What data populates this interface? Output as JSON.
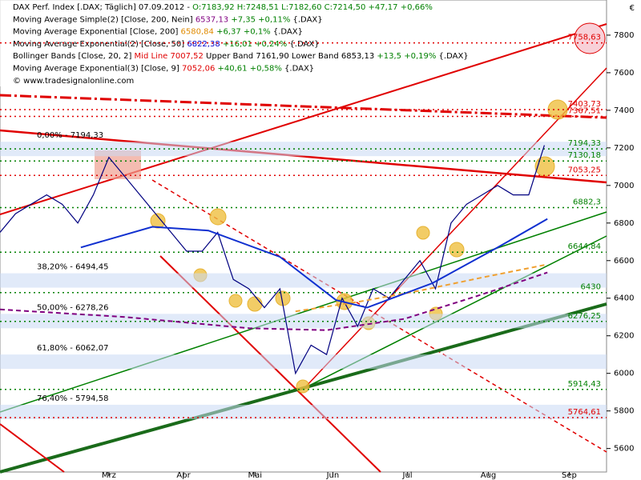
{
  "chart_data": {
    "type": "line",
    "header": [
      {
        "parts": [
          "DAX Perf. Index [.DAX; Täglich] 07.09.2012 - ",
          "O:7183,92 H:7248,51 L:7182,60 C:7214,50 +47,17 +0,66%"
        ],
        "colors": [
          "#000000",
          "#008000"
        ]
      },
      {
        "parts": [
          "Moving Average Simple(2) [Close, 200, Nein] ",
          "6537,13",
          " +7,35 +0,11%",
          " {.DAX}"
        ],
        "colors": [
          "#000000",
          "#800080",
          "#008000",
          "#000000"
        ]
      },
      {
        "parts": [
          "Moving Average Exponential [Close, 200] ",
          "6580,84",
          " +6,37 +0,1%",
          " {.DAX}"
        ],
        "colors": [
          "#000000",
          "#e08a00",
          "#008000",
          "#000000"
        ]
      },
      {
        "parts": [
          "Moving Average Exponential(2) [Close, 50] ",
          "6822,38",
          " +16,01 +0,24%",
          " {.DAX}"
        ],
        "colors": [
          "#000000",
          "#0000cc",
          "#008000",
          "#000000"
        ]
      },
      {
        "parts": [
          "Bollinger Bands [Close, 20, 2] ",
          "Mid Line 7007,52",
          " Upper Band 7161,90 Lower Band 6853,13",
          " +13,5 +0,19%",
          " {.DAX}"
        ],
        "colors": [
          "#000000",
          "#e00000",
          "#000000",
          "#008000",
          "#000000"
        ]
      },
      {
        "parts": [
          "Moving Average Exponential(3) [Close, 9] ",
          "7052,06",
          " +40,61 +0,58%",
          " {.DAX}"
        ],
        "colors": [
          "#000000",
          "#e00000",
          "#008000",
          "#000000"
        ]
      },
      {
        "parts": [
          "© www.tradesignalonline.com"
        ],
        "colors": [
          "#000000"
        ]
      }
    ],
    "currency": "€",
    "xlim": [
      0,
      195
    ],
    "xticks": [
      {
        "value": 35,
        "label": "Mrz"
      },
      {
        "value": 59,
        "label": "Apr"
      },
      {
        "value": 82,
        "label": "Mai"
      },
      {
        "value": 107,
        "label": "Jun"
      },
      {
        "value": 131,
        "label": "Jul"
      },
      {
        "value": 157,
        "label": "Aug"
      },
      {
        "value": 183,
        "label": "Sep"
      }
    ],
    "ylim": [
      5475,
      7987
    ],
    "yticks": [
      5600,
      5800,
      6000,
      6200,
      6400,
      6600,
      6800,
      7000,
      7200,
      7400,
      7600,
      7800
    ],
    "grid": false,
    "series": [
      {
        "name": "Close",
        "color": "#000080",
        "width": 1.2,
        "dash": "",
        "x": [
          0,
          5,
          10,
          15,
          20,
          25,
          30,
          35,
          40,
          45,
          50,
          55,
          60,
          65,
          70,
          75,
          80,
          85,
          90,
          95,
          100,
          105,
          110,
          115,
          120,
          125,
          130,
          135,
          140,
          145,
          150,
          155,
          160,
          165,
          170,
          175
        ],
        "values": [
          6750,
          6850,
          6900,
          6950,
          6900,
          6800,
          6950,
          7150,
          7050,
          6950,
          6850,
          6750,
          6650,
          6650,
          6750,
          6500,
          6450,
          6350,
          6450,
          6000,
          6150,
          6100,
          6400,
          6250,
          6450,
          6400,
          6500,
          6600,
          6450,
          6800,
          6900,
          6950,
          7000,
          6950,
          6950,
          7214
        ]
      },
      {
        "name": "MA Simple 200",
        "color": "#800080",
        "width": 2,
        "dash": "6 4",
        "x": [
          0,
          40,
          80,
          105,
          130,
          155,
          176
        ],
        "values": [
          6340,
          6300,
          6240,
          6230,
          6290,
          6420,
          6537
        ]
      },
      {
        "name": "MA Exp 200",
        "color": "#f0a030",
        "width": 2,
        "dash": "6 4",
        "x": [
          95,
          115,
          135,
          155,
          176
        ],
        "values": [
          6330,
          6380,
          6440,
          6510,
          6580
        ]
      },
      {
        "name": "MA Exp 50",
        "color": "#1030d0",
        "width": 2,
        "dash": "",
        "x": [
          26,
          49,
          67,
          90,
          108,
          118,
          139,
          160,
          176
        ],
        "values": [
          6670,
          6780,
          6760,
          6620,
          6390,
          6350,
          6480,
          6670,
          6822
        ]
      }
    ],
    "fib_levels": [
      {
        "label": "0,00% - 7194,33",
        "value": 7194.33
      },
      {
        "label": "38,20% - 6494,45",
        "value": 6494.45
      },
      {
        "label": "50,00% - 6278,26",
        "value": 6278.26
      },
      {
        "label": "61,80% - 6062,07",
        "value": 6062.07
      },
      {
        "label": "76,40% - 5794,58",
        "value": 5794.58
      }
    ],
    "levels": [
      {
        "label": "7758,63",
        "value": 7758.63,
        "color": "#e00000"
      },
      {
        "label": "7403,73",
        "value": 7403.73,
        "color": "#e00000"
      },
      {
        "label": "7367,51",
        "value": 7367.51,
        "color": "#e00000"
      },
      {
        "label": "7194,33",
        "value": 7194.33,
        "color": "#008000"
      },
      {
        "label": "7130,18",
        "value": 7130.18,
        "color": "#008000"
      },
      {
        "label": "7053,25",
        "value": 7053.25,
        "color": "#e00000"
      },
      {
        "label": "6882,3",
        "value": 6882.3,
        "color": "#008000"
      },
      {
        "label": "6644,84",
        "value": 6644.84,
        "color": "#008000"
      },
      {
        "label": "6430",
        "value": 6430,
        "color": "#008000"
      },
      {
        "label": "6276,25",
        "value": 6276.25,
        "color": "#008000"
      },
      {
        "label": "5914,43",
        "value": 5914.43,
        "color": "#008000"
      },
      {
        "label": "5764,61",
        "value": 5764.61,
        "color": "#e00000"
      }
    ]
  }
}
